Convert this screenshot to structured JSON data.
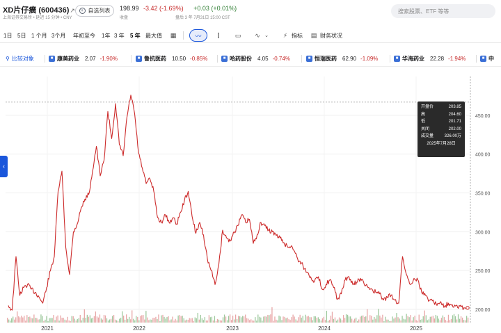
{
  "header": {
    "stock_title": "XD片仔癀 (600436)",
    "exchange_note": "上海证券交易所 • 延迟 15 分钟 • CNY",
    "watch_label": "自选列表",
    "price": "198.99",
    "change": "-3.42 (-1.69%)",
    "after_change": "+0.03 (+0.01%)",
    "close_label": "收盘",
    "after_label": "盘后 3 年 7月31日 15:00 CST",
    "search_placeholder": "搜索股票、ETF 等等"
  },
  "toolbar": {
    "ranges": [
      "1日",
      "5日",
      "1 个月",
      "3个月",
      "年初至今",
      "1年",
      "3 年",
      "5 年",
      "最大值"
    ],
    "active_range": "5 年",
    "indicators_label": "指标",
    "financials_label": "财务状况"
  },
  "compare": {
    "label": "比较对象",
    "items": [
      {
        "name": "康美药业",
        "price": "2.07",
        "pct": "-1.90%",
        "dir": "neg"
      },
      {
        "name": "鲁抗医药",
        "price": "10.50",
        "pct": "-0.85%",
        "dir": "neg"
      },
      {
        "name": "哈药股份",
        "price": "4.05",
        "pct": "-0.74%",
        "dir": "neg"
      },
      {
        "name": "恒瑞医药",
        "price": "62.90",
        "pct": "-1.09%",
        "dir": "neg"
      },
      {
        "name": "华海药业",
        "price": "22.28",
        "pct": "-1.94%",
        "dir": "neg"
      },
      {
        "name": "中",
        "price": "",
        "pct": "",
        "dir": "neg"
      }
    ]
  },
  "tooltip": {
    "open_label": "开盘价",
    "open": "203.85",
    "high_label": "高",
    "high": "204.60",
    "low_label": "低",
    "low": "201.71",
    "close_label": "关闭",
    "close": "202.00",
    "volume_label": "成交量",
    "volume": "326.00万",
    "date": "2025年7月28日"
  },
  "colors": {
    "line": "#cc2a2a",
    "accent": "#1a56db",
    "negative": "#c62828",
    "positive": "#2e7d32",
    "vol_up": "#7fb77e",
    "vol_down": "#e08a8a"
  },
  "chart_data": {
    "type": "line",
    "x": [
      "2020-08",
      "2020-08",
      "2020-09",
      "2020-09",
      "2020-10",
      "2020-10",
      "2020-11",
      "2020-11",
      "2020-12",
      "2020-12",
      "2021-01",
      "2021-01",
      "2021-02",
      "2021-02",
      "2021-03",
      "2021-03",
      "2021-04",
      "2021-04",
      "2021-05",
      "2021-05",
      "2021-06",
      "2021-06",
      "2021-07",
      "2021-07",
      "2021-08",
      "2021-08",
      "2021-09",
      "2021-09",
      "2021-10",
      "2021-10",
      "2021-11",
      "2021-11",
      "2021-12",
      "2021-12",
      "2022-01",
      "2022-01",
      "2022-02",
      "2022-02",
      "2022-03",
      "2022-03",
      "2022-04",
      "2022-04",
      "2022-05",
      "2022-05",
      "2022-06",
      "2022-06",
      "2022-07",
      "2022-07",
      "2022-08",
      "2022-08",
      "2022-09",
      "2022-09",
      "2022-10",
      "2022-10",
      "2022-11",
      "2022-11",
      "2022-12",
      "2022-12",
      "2023-01",
      "2023-01",
      "2023-02",
      "2023-02",
      "2023-03",
      "2023-03",
      "2023-04",
      "2023-04",
      "2023-05",
      "2023-05",
      "2023-06",
      "2023-06",
      "2023-07",
      "2023-07",
      "2023-08",
      "2023-08",
      "2023-09",
      "2023-09",
      "2023-10",
      "2023-10",
      "2023-11",
      "2023-11",
      "2023-12",
      "2023-12",
      "2024-01",
      "2024-01",
      "2024-02",
      "2024-02",
      "2024-03",
      "2024-03",
      "2024-04",
      "2024-04",
      "2024-05",
      "2024-05",
      "2024-06",
      "2024-06",
      "2024-07",
      "2024-07",
      "2024-08",
      "2024-08",
      "2024-09",
      "2024-09",
      "2024-10",
      "2024-10",
      "2024-11",
      "2024-11",
      "2024-12",
      "2024-12",
      "2025-01",
      "2025-01",
      "2025-02",
      "2025-02",
      "2025-03",
      "2025-03",
      "2025-04",
      "2025-04",
      "2025-05",
      "2025-05",
      "2025-06",
      "2025-06",
      "2025-07",
      "2025-07",
      "2025-07"
    ],
    "series": [
      {
        "values": [
          205,
          199,
          268,
          218,
          228,
          232,
          226,
          222,
          216,
          208,
          228,
          250,
          268,
          352,
          378,
          280,
          245,
          300,
          310,
          330,
          342,
          348,
          378,
          410,
          372,
          392,
          455,
          420,
          465,
          412,
          398,
          448,
          476,
          452,
          402,
          382,
          362,
          368,
          352,
          318,
          312,
          322,
          312,
          318,
          310,
          325,
          340,
          352,
          320,
          298,
          312,
          296,
          265,
          250,
          232,
          258,
          302,
          292,
          288,
          300,
          308,
          322,
          312,
          316,
          285,
          296,
          312,
          308,
          302,
          300,
          295,
          292,
          286,
          280,
          282,
          272,
          262,
          256,
          248,
          242,
          236,
          242,
          226,
          232,
          238,
          228,
          213,
          220,
          238,
          242,
          232,
          235,
          240,
          232,
          228,
          226,
          222,
          220,
          212,
          216,
          218,
          212,
          208,
          268,
          245,
          232,
          240,
          238,
          222,
          218,
          212,
          212,
          205,
          210,
          204,
          208,
          206,
          205,
          204,
          202,
          200
        ]
      }
    ],
    "yticks": [
      200,
      250,
      300,
      350,
      400,
      450
    ],
    "ylim": [
      183,
      500
    ],
    "ytick_labels": [
      "200.00",
      "250.00",
      "300.00",
      "350.00",
      "400.00",
      "450.00"
    ],
    "xtick_labels": [
      "2021",
      "2022",
      "2023",
      "2024",
      "2025"
    ],
    "grid": true,
    "reference_line": 467
  }
}
